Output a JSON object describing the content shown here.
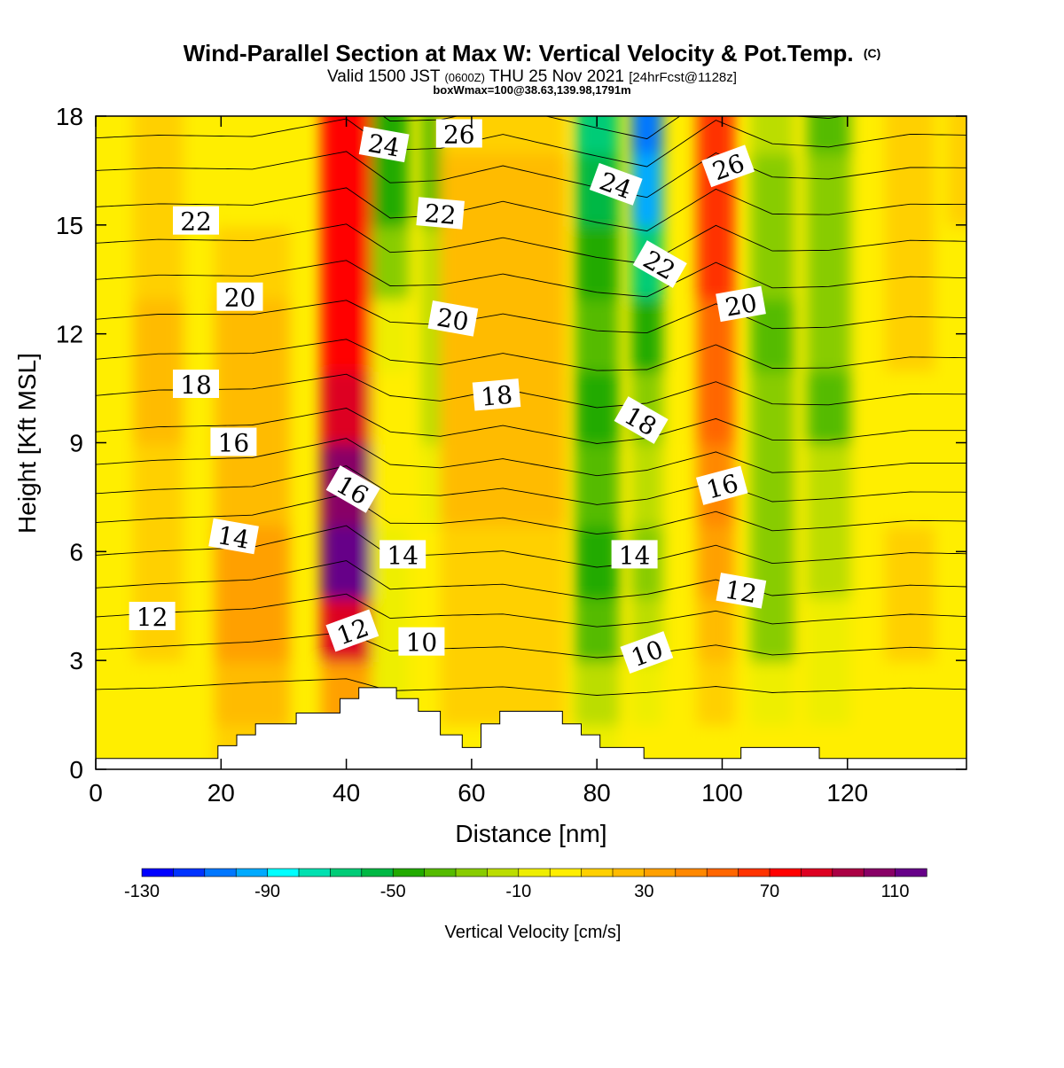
{
  "title": {
    "main": "Wind-Parallel Section at Max W: Vertical Velocity & Pot.Temp.",
    "copyright": "(C)",
    "valid_prefix": "Valid 1500 JST",
    "valid_utc": "(0600Z)",
    "valid_date": "THU 25 Nov 2021",
    "fcst": "[24hrFcst@1128z]",
    "boxline": "boxWmax=100@38.63,139.98,1791m"
  },
  "chart_data": {
    "type": "heatmap",
    "xlabel": "Distance [nm]",
    "ylabel": "Height [Kft MSL]",
    "xlim": [
      0,
      139
    ],
    "ylim": [
      0,
      18
    ],
    "xticks": [
      "0",
      "20",
      "40",
      "60",
      "80",
      "100",
      "120"
    ],
    "yticks": [
      "0",
      "3",
      "6",
      "9",
      "12",
      "15",
      "18"
    ],
    "colorbar": {
      "label": "Vertical Velocity [cm/s]",
      "tick_labels": [
        "-130",
        "-90",
        "-50",
        "-10",
        "30",
        "70",
        "110"
      ],
      "colors": [
        "#0000ff",
        "#0033ff",
        "#0077ff",
        "#00aaff",
        "#00ffff",
        "#00e0b0",
        "#00cc77",
        "#00b844",
        "#22aa00",
        "#55bb00",
        "#88cc00",
        "#bbdd00",
        "#eeee00",
        "#ffee00",
        "#ffd000",
        "#ffbb00",
        "#ffa000",
        "#ff8800",
        "#ff6600",
        "#ff3300",
        "#ff0000",
        "#dd0022",
        "#aa0044",
        "#880066",
        "#660088"
      ]
    },
    "columns": [
      {
        "x": 0,
        "w": 8
      },
      {
        "x": 10,
        "w": 8
      },
      {
        "x": 25,
        "w": 12
      },
      {
        "x": 40,
        "w": 8
      },
      {
        "x": 47,
        "w": 6
      },
      {
        "x": 55,
        "w": 6
      },
      {
        "x": 65,
        "w": 20
      },
      {
        "x": 80,
        "w": 7
      },
      {
        "x": 88,
        "w": 5
      },
      {
        "x": 99,
        "w": 6
      },
      {
        "x": 108,
        "w": 7
      },
      {
        "x": 117,
        "w": 7
      },
      {
        "x": 130,
        "w": 8
      },
      {
        "x": 140,
        "w": 8
      }
    ],
    "w_rows": [
      {
        "z": 0.5,
        "w": [
          0,
          0,
          10,
          15,
          0,
          0,
          5,
          -5,
          0,
          5,
          0,
          0,
          0,
          0
        ]
      },
      {
        "z": 2,
        "w": [
          0,
          5,
          25,
          35,
          -5,
          0,
          10,
          -20,
          -10,
          10,
          -10,
          -5,
          5,
          0
        ]
      },
      {
        "z": 4,
        "w": [
          0,
          15,
          30,
          80,
          -5,
          5,
          10,
          -35,
          -20,
          20,
          -25,
          -10,
          10,
          0
        ]
      },
      {
        "z": 5.5,
        "w": [
          0,
          15,
          30,
          110,
          -5,
          5,
          15,
          -45,
          -25,
          35,
          -30,
          -15,
          10,
          5
        ]
      },
      {
        "z": 8,
        "w": [
          0,
          15,
          25,
          100,
          0,
          -10,
          20,
          -40,
          -20,
          45,
          -30,
          -20,
          5,
          5
        ]
      },
      {
        "z": 10,
        "w": [
          0,
          20,
          25,
          80,
          0,
          -20,
          25,
          -45,
          -25,
          50,
          -30,
          -35,
          5,
          5
        ]
      },
      {
        "z": 12,
        "w": [
          0,
          20,
          20,
          70,
          -5,
          -20,
          20,
          -40,
          -45,
          55,
          -35,
          -30,
          10,
          5
        ]
      },
      {
        "z": 14,
        "w": [
          0,
          15,
          10,
          70,
          -30,
          -20,
          20,
          -50,
          -70,
          65,
          -30,
          -25,
          10,
          5
        ]
      },
      {
        "z": 16,
        "w": [
          0,
          10,
          5,
          70,
          -45,
          -35,
          20,
          -60,
          -95,
          65,
          -25,
          -30,
          10,
          10
        ]
      },
      {
        "z": 18,
        "w": [
          0,
          10,
          5,
          70,
          -45,
          -40,
          10,
          -70,
          -110,
          65,
          -20,
          -35,
          15,
          10
        ]
      }
    ],
    "theta_contours": {
      "levels": [
        10,
        11,
        12,
        13,
        14,
        15,
        16,
        17,
        18,
        19,
        20,
        21,
        22,
        23,
        24,
        25,
        26,
        27
      ],
      "base_heights": [
        2.2,
        3.3,
        4.2,
        5.0,
        5.9,
        6.8,
        7.6,
        8.4,
        9.3,
        10.3,
        11.3,
        12.4,
        13.5,
        14.5,
        15.5,
        16.5,
        17.4,
        18.2
      ],
      "labels": [
        {
          "x": 9,
          "z": 4.2,
          "text": "12",
          "rotate": 0
        },
        {
          "x": 22,
          "z": 6.4,
          "text": "14",
          "rotate": 10
        },
        {
          "x": 22,
          "z": 9.0,
          "text": "16",
          "rotate": 0
        },
        {
          "x": 16,
          "z": 10.6,
          "text": "18",
          "rotate": 0
        },
        {
          "x": 23,
          "z": 13.0,
          "text": "20",
          "rotate": 0
        },
        {
          "x": 16,
          "z": 15.1,
          "text": "22",
          "rotate": 0
        },
        {
          "x": 41,
          "z": 3.8,
          "text": "12",
          "rotate": -20
        },
        {
          "x": 41,
          "z": 7.7,
          "text": "16",
          "rotate": 30
        },
        {
          "x": 49,
          "z": 5.9,
          "text": "14",
          "rotate": 0
        },
        {
          "x": 52,
          "z": 3.5,
          "text": "10",
          "rotate": 0
        },
        {
          "x": 46,
          "z": 17.2,
          "text": "24",
          "rotate": 10
        },
        {
          "x": 55,
          "z": 15.3,
          "text": "22",
          "rotate": 5
        },
        {
          "x": 58,
          "z": 17.5,
          "text": "26",
          "rotate": 0
        },
        {
          "x": 57,
          "z": 12.4,
          "text": "20",
          "rotate": 10
        },
        {
          "x": 64,
          "z": 10.3,
          "text": "18",
          "rotate": -5
        },
        {
          "x": 83,
          "z": 16.1,
          "text": "24",
          "rotate": 20
        },
        {
          "x": 90,
          "z": 13.9,
          "text": "22",
          "rotate": 30
        },
        {
          "x": 87,
          "z": 9.6,
          "text": "18",
          "rotate": 30
        },
        {
          "x": 86,
          "z": 5.9,
          "text": "14",
          "rotate": 0
        },
        {
          "x": 88,
          "z": 3.2,
          "text": "10",
          "rotate": -20
        },
        {
          "x": 101,
          "z": 16.6,
          "text": "26",
          "rotate": -20
        },
        {
          "x": 103,
          "z": 12.8,
          "text": "20",
          "rotate": -10
        },
        {
          "x": 100,
          "z": 7.8,
          "text": "16",
          "rotate": -15
        },
        {
          "x": 103,
          "z": 4.9,
          "text": "12",
          "rotate": 10
        }
      ]
    },
    "terrain": [
      [
        0,
        0.3
      ],
      [
        19.5,
        0.3
      ],
      [
        19.5,
        0.65
      ],
      [
        22.5,
        0.65
      ],
      [
        22.5,
        0.95
      ],
      [
        25.5,
        0.95
      ],
      [
        25.5,
        1.25
      ],
      [
        32,
        1.25
      ],
      [
        32,
        1.55
      ],
      [
        39,
        1.55
      ],
      [
        39,
        1.95
      ],
      [
        42,
        1.95
      ],
      [
        42,
        2.25
      ],
      [
        48,
        2.25
      ],
      [
        48,
        1.95
      ],
      [
        51.5,
        1.95
      ],
      [
        51.5,
        1.6
      ],
      [
        55,
        1.6
      ],
      [
        55,
        0.95
      ],
      [
        58.5,
        0.95
      ],
      [
        58.5,
        0.6
      ],
      [
        61.5,
        0.6
      ],
      [
        61.5,
        1.25
      ],
      [
        64.5,
        1.25
      ],
      [
        64.5,
        1.6
      ],
      [
        74.5,
        1.6
      ],
      [
        74.5,
        1.25
      ],
      [
        77.5,
        1.25
      ],
      [
        77.5,
        0.95
      ],
      [
        80.5,
        0.95
      ],
      [
        80.5,
        0.6
      ],
      [
        87.5,
        0.6
      ],
      [
        87.5,
        0.3
      ],
      [
        103,
        0.3
      ],
      [
        103,
        0.6
      ],
      [
        115.5,
        0.6
      ],
      [
        115.5,
        0.3
      ],
      [
        139,
        0.3
      ]
    ]
  }
}
